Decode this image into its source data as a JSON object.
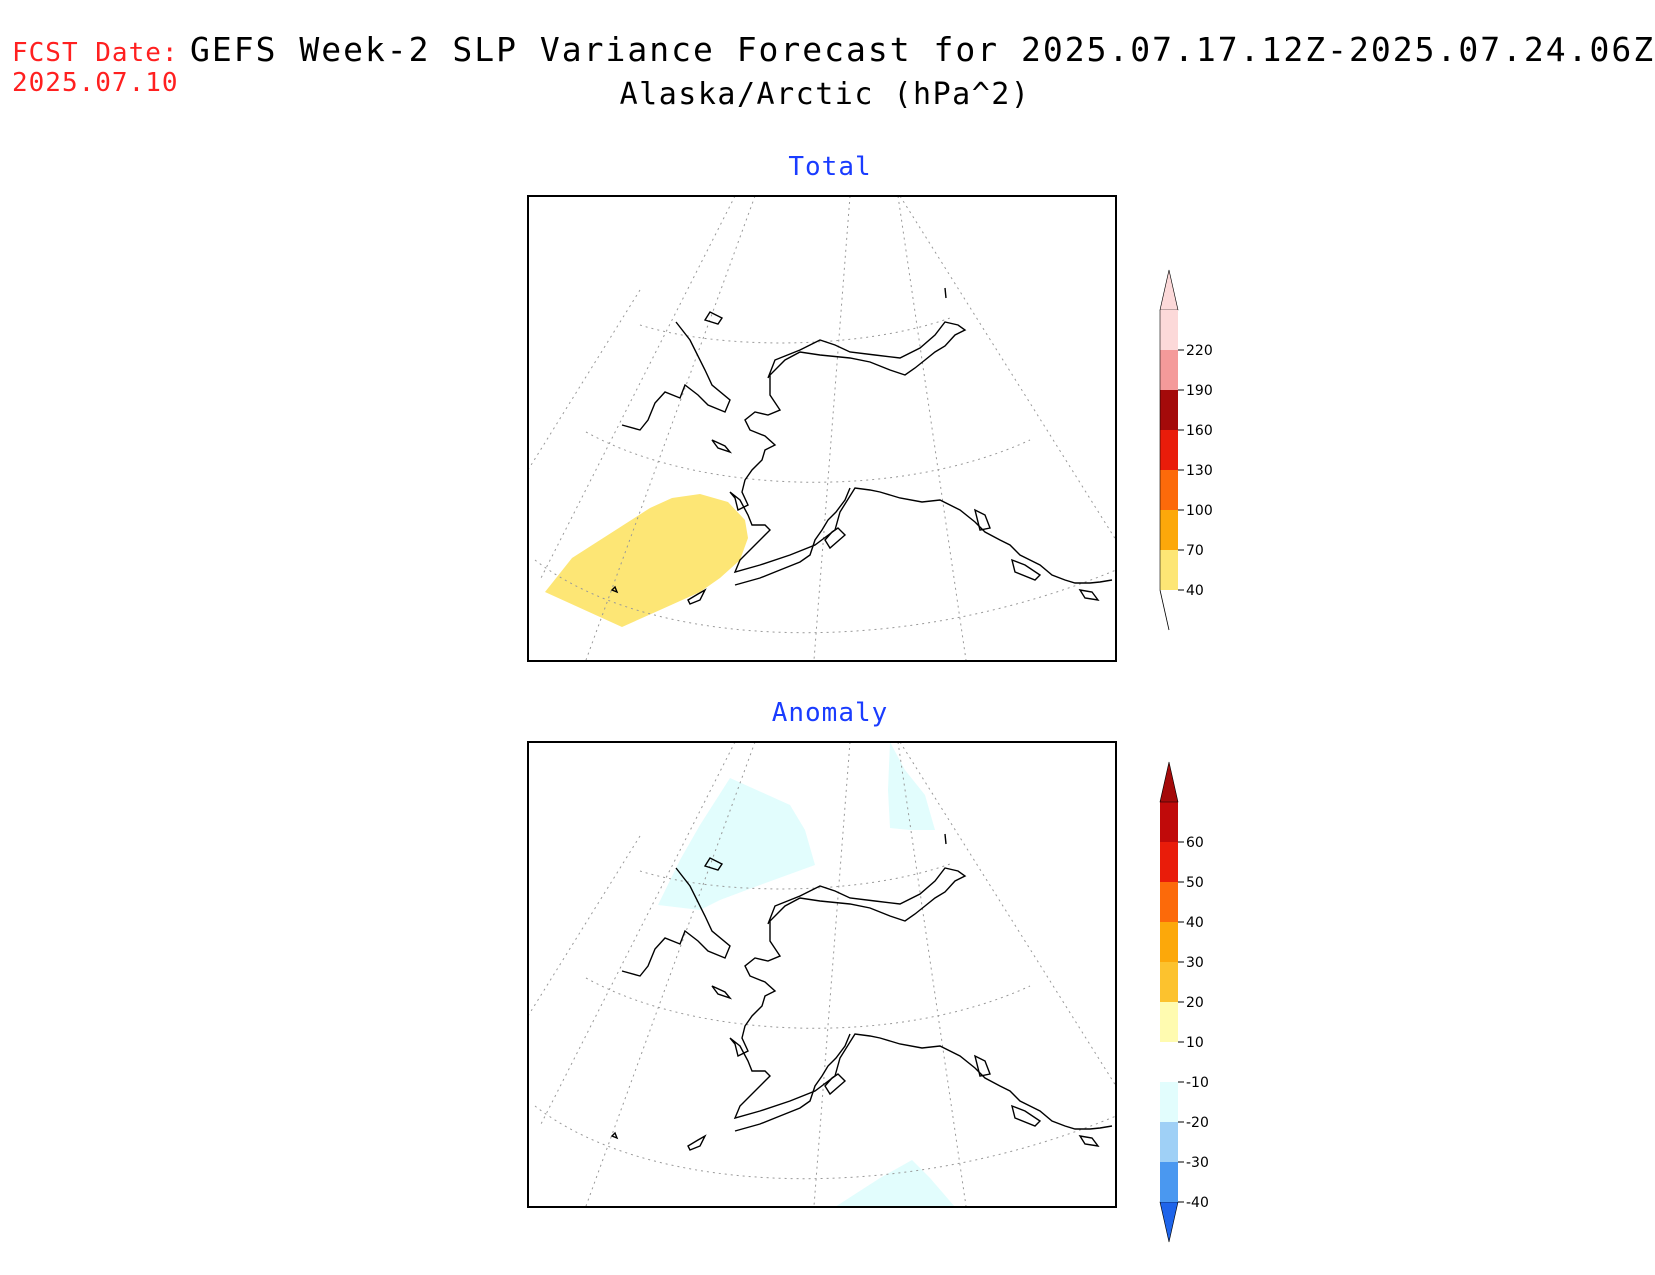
{
  "header": {
    "fcst_label": "FCST Date:",
    "fcst_date": "2025.07.10",
    "title": "GEFS Week-2 SLP Variance Forecast for 2025.07.17.12Z-2025.07.24.06Z",
    "subtitle": "Alaska/Arctic (hPa^2)"
  },
  "panels": [
    {
      "title": "Total",
      "colorbar": {
        "levels": [
          "40",
          "70",
          "100",
          "130",
          "160",
          "190",
          "220"
        ],
        "colors": [
          "#fde675",
          "#fca80a",
          "#fc6a0a",
          "#e91c0a",
          "#a40a0a",
          "#f49a9a",
          "#fcd9d9"
        ]
      }
    },
    {
      "title": "Anomaly",
      "colorbar": {
        "levels": [
          "-40",
          "-30",
          "-20",
          "-10",
          "10",
          "20",
          "30",
          "40",
          "50",
          "60"
        ],
        "colors": [
          "#1e64ea",
          "#4a98f0",
          "#9fd0f6",
          "#e2fdfd",
          "#ffffff",
          "#fffbb0",
          "#fcc22e",
          "#fca80a",
          "#fc6a0a",
          "#e91c0a",
          "#c00a0a",
          "#a40a0a"
        ]
      }
    }
  ]
}
